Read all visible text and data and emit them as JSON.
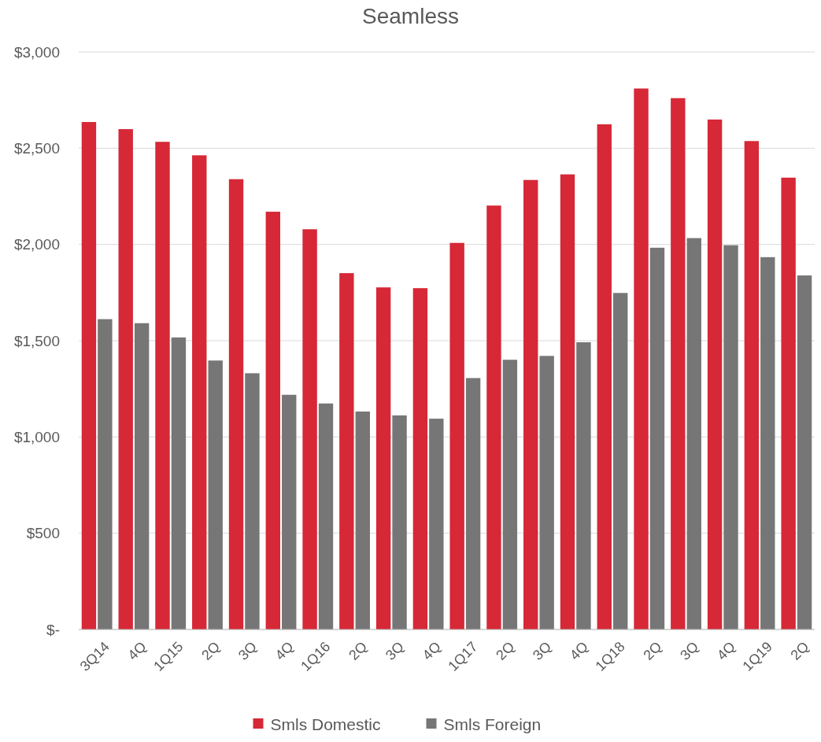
{
  "chart_data": {
    "type": "bar",
    "title": "Seamless",
    "categories": [
      "3Q14",
      "4Q",
      "1Q15",
      "2Q",
      "3Q",
      "4Q",
      "1Q16",
      "2Q",
      "3Q",
      "4Q",
      "1Q17",
      "2Q",
      "3Q",
      "4Q",
      "1Q18",
      "2Q",
      "3Q",
      "4Q",
      "1Q19",
      "2Q"
    ],
    "series": [
      {
        "name": "Smls Domestic",
        "color": "#d62836",
        "values": [
          2636,
          2599,
          2533,
          2463,
          2339,
          2170,
          2079,
          1851,
          1777,
          1773,
          2008,
          2202,
          2335,
          2364,
          2624,
          2810,
          2760,
          2649,
          2537,
          2347
        ]
      },
      {
        "name": "Smls Foreign",
        "color": "#767676",
        "values": [
          1612,
          1591,
          1517,
          1397,
          1331,
          1219,
          1174,
          1132,
          1112,
          1095,
          1306,
          1401,
          1421,
          1492,
          1748,
          1983,
          2033,
          1996,
          1934,
          1839
        ]
      }
    ],
    "ylim": [
      0,
      3000
    ],
    "yticks": [
      {
        "value": 0,
        "label": "$-"
      },
      {
        "value": 500,
        "label": "$500"
      },
      {
        "value": 1000,
        "label": "$1,000"
      },
      {
        "value": 1500,
        "label": "$1,500"
      },
      {
        "value": 2000,
        "label": "$2,000"
      },
      {
        "value": 2500,
        "label": "$2,500"
      },
      {
        "value": 3000,
        "label": "$3,000"
      }
    ],
    "grid": "y",
    "legend": "bottom"
  }
}
